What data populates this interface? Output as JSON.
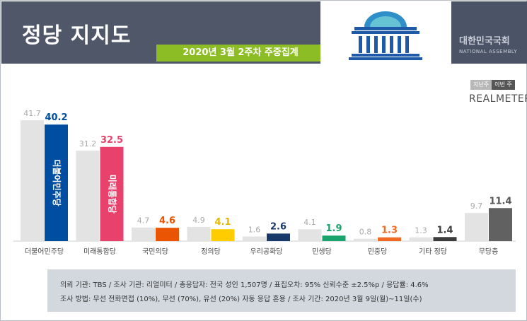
{
  "header": {
    "title": "정당 지지도",
    "subtitle": "2020년 3월 2주차 주중집계",
    "assembly_ko": "대한민국국회",
    "assembly_en": "NATIONAL ASSEMBLY"
  },
  "legend": {
    "prev": "지난주",
    "curr": "이번 주"
  },
  "brand": "REALMETER",
  "chart_data": {
    "type": "bar",
    "categories": [
      "더불어민주당",
      "미래통합당",
      "국민의당",
      "정의당",
      "우리공화당",
      "민생당",
      "민중당",
      "기타 정당",
      "무당층"
    ],
    "series": [
      {
        "name": "지난주",
        "values": [
          41.7,
          31.2,
          4.7,
          4.9,
          1.6,
          4.1,
          0.8,
          1.3,
          9.7
        ]
      },
      {
        "name": "이번 주",
        "values": [
          40.2,
          32.5,
          4.6,
          4.1,
          2.6,
          1.9,
          1.3,
          1.4,
          11.4
        ]
      }
    ],
    "prev_labels": [
      "41.7",
      "31.2",
      "4.7",
      "4.9",
      "1.6",
      "4.1",
      "0.8",
      "1.3",
      "9.7"
    ],
    "curr_labels": [
      "40.2",
      "32.5",
      "4.6",
      "4.1",
      "2.6",
      "1.9",
      "1.3",
      "1.4",
      "11.4"
    ],
    "colors": [
      "#004ea2",
      "#e8426c",
      "#ea5504",
      "#ffcc00",
      "#173a6b",
      "#1aa36d",
      "#f06a23",
      "#3c3c3c",
      "#616161"
    ],
    "label_colors": [
      "#004ea2",
      "#e8426c",
      "#ea5504",
      "#e6b800",
      "#173a6b",
      "#1aa36d",
      "#f06a23",
      "#3c3c3c",
      "#555555"
    ],
    "prev_color": "#e3e3e3",
    "bar_text": [
      "더불어민주당",
      "미래통합당"
    ],
    "ylim": [
      0,
      45
    ]
  },
  "footer": {
    "line1": "의뢰 기관: TBS / 조사 기관: 리얼미터 / 총응답자: 전국 성인 1,507명 / 표집오차: 95% 신뢰수준 ±2.5%p / 응답률: 4.6%",
    "line2": "조사 방법: 무선 전화면접 (10%), 무선 (70%), 유선 (20%) 자동 응답 혼용 / 조사 기간: 2020년 3월 9일(월)~11일(수)"
  }
}
